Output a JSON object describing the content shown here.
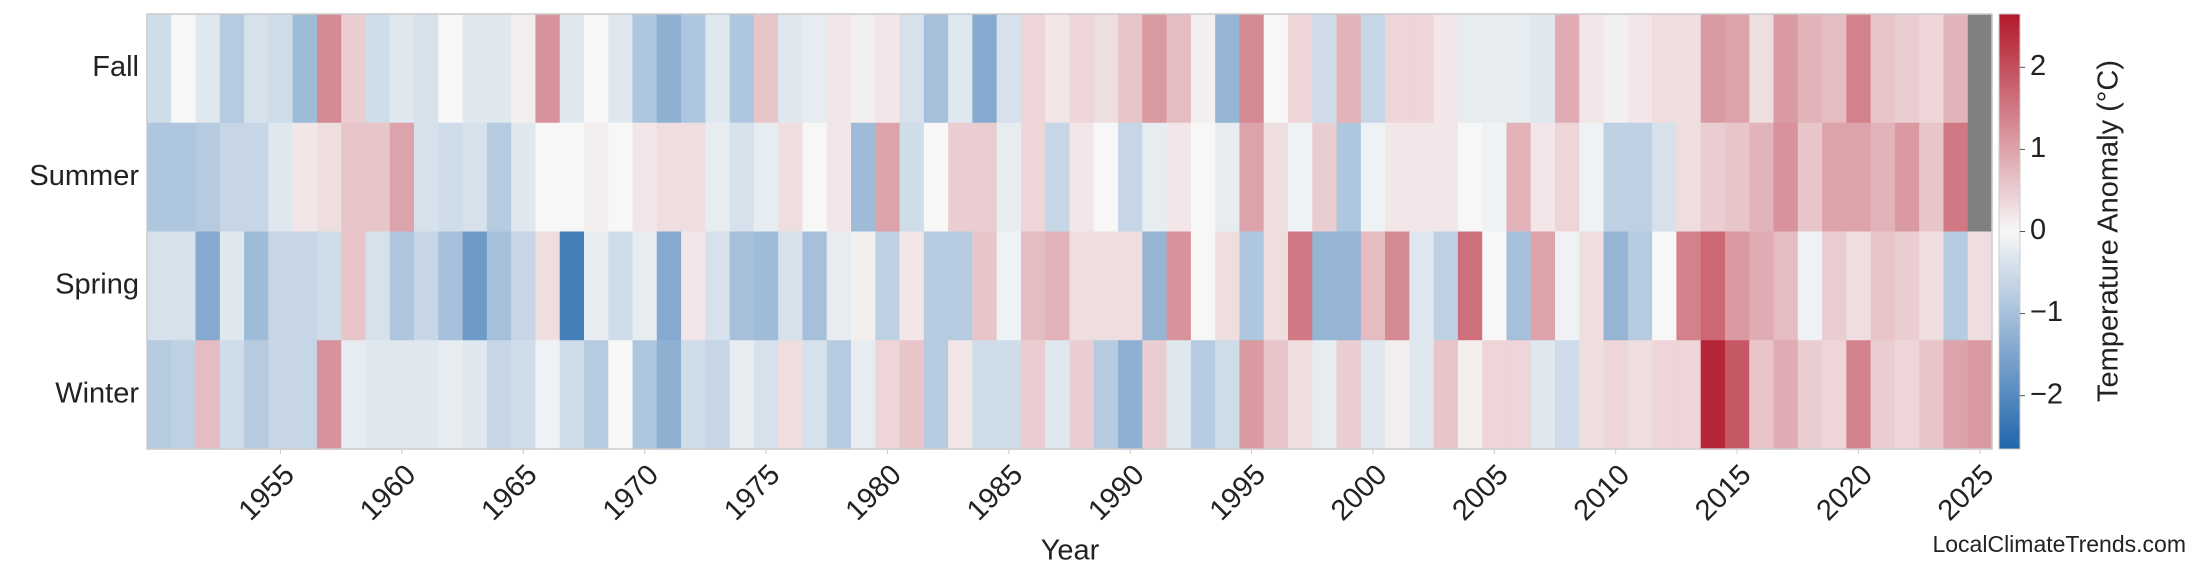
{
  "chart_data": {
    "type": "heatmap",
    "xlabel": "Year",
    "colorbar_label": "Temperature Anomaly (°C)",
    "watermark": "LocalClimateTrends.com",
    "x": [
      1950,
      1951,
      1952,
      1953,
      1954,
      1955,
      1956,
      1957,
      1958,
      1959,
      1960,
      1961,
      1962,
      1963,
      1964,
      1965,
      1966,
      1967,
      1968,
      1969,
      1970,
      1971,
      1972,
      1973,
      1974,
      1975,
      1976,
      1977,
      1978,
      1979,
      1980,
      1981,
      1982,
      1983,
      1984,
      1985,
      1986,
      1987,
      1988,
      1989,
      1990,
      1991,
      1992,
      1993,
      1994,
      1995,
      1996,
      1997,
      1998,
      1999,
      2000,
      2001,
      2002,
      2003,
      2004,
      2005,
      2006,
      2007,
      2008,
      2009,
      2010,
      2011,
      2012,
      2013,
      2014,
      2015,
      2016,
      2017,
      2018,
      2019,
      2020,
      2021,
      2022,
      2023,
      2024,
      2025
    ],
    "xlim": [
      1949.5,
      2025.5
    ],
    "xticks": [
      1955,
      1960,
      1965,
      1970,
      1975,
      1980,
      1985,
      1990,
      1995,
      2000,
      2005,
      2010,
      2015,
      2020,
      2025
    ],
    "series": [
      {
        "name": "Fall",
        "values": [
          -0.5,
          0,
          -0.3,
          -0.8,
          -0.4,
          -0.5,
          -1.1,
          1.3,
          0.5,
          -0.5,
          -0.3,
          -0.4,
          0,
          -0.3,
          -0.3,
          0.1,
          1.2,
          -0.3,
          0,
          -0.3,
          -0.9,
          -1.3,
          -0.9,
          -0.3,
          -0.9,
          0.6,
          -0.3,
          -0.2,
          0.2,
          0.1,
          0.2,
          -0.4,
          -1.0,
          -0.3,
          -1.4,
          -0.4,
          0.4,
          0.2,
          0.4,
          0.3,
          0.6,
          1.1,
          0.7,
          0.1,
          -1.2,
          1.3,
          0,
          0.4,
          -0.5,
          0.8,
          -0.6,
          0.4,
          0.4,
          0.2,
          -0.2,
          -0.2,
          -0.2,
          -0.3,
          0.9,
          0.2,
          0.1,
          0.2,
          0.3,
          0.3,
          1.1,
          1.0,
          0.3,
          1.1,
          0.8,
          0.7,
          1.4,
          0.6,
          0.5,
          0.4,
          0.8,
          null
        ]
      },
      {
        "name": "Summer",
        "values": [
          -0.9,
          -0.9,
          -0.8,
          -0.6,
          -0.6,
          -0.3,
          0.2,
          0.3,
          0.6,
          0.6,
          1.0,
          -0.4,
          -0.5,
          -0.4,
          -0.8,
          -0.3,
          0,
          0,
          0.1,
          0,
          0.2,
          0.3,
          0.3,
          -0.2,
          -0.4,
          -0.2,
          0.3,
          0,
          0.2,
          -1.1,
          1.0,
          -0.5,
          0,
          0.5,
          0.5,
          -0.2,
          0.4,
          -0.6,
          0.2,
          0,
          -0.6,
          -0.2,
          0.2,
          0,
          -0.2,
          1.0,
          0.3,
          -0.1,
          0.5,
          -0.9,
          -0.1,
          0.2,
          0.2,
          0.2,
          0,
          -0.1,
          0.8,
          0.2,
          0.4,
          -0.1,
          -0.7,
          -0.7,
          -0.4,
          0.3,
          0.5,
          0.6,
          0.8,
          1.2,
          0.6,
          1.0,
          1.0,
          0.8,
          1.1,
          0.6,
          1.5,
          null
        ]
      },
      {
        "name": "Spring",
        "values": [
          -0.4,
          -0.4,
          -1.4,
          -0.3,
          -1.1,
          -0.6,
          -0.6,
          -0.5,
          0.6,
          -0.4,
          -0.9,
          -0.6,
          -1.0,
          -1.7,
          -1.0,
          -0.6,
          0.3,
          -2.2,
          -0.2,
          -0.5,
          -0.2,
          -1.4,
          0.2,
          -0.4,
          -1.0,
          -1.1,
          -0.4,
          -1.0,
          -0.2,
          0.1,
          -0.7,
          0.2,
          -0.8,
          -0.8,
          0.6,
          -0.1,
          0.7,
          0.8,
          0.3,
          0.3,
          0.3,
          -1.2,
          1.2,
          0,
          0.3,
          -0.9,
          0.3,
          1.5,
          -1.2,
          -1.2,
          0.7,
          1.3,
          -0.3,
          -0.7,
          1.6,
          0,
          -1.0,
          1.0,
          -0.1,
          0.3,
          -1.2,
          -0.8,
          0,
          1.4,
          1.7,
          1.1,
          0.9,
          0.7,
          -0.1,
          0.5,
          0.3,
          0.6,
          0.5,
          0.3,
          -0.8,
          0.3
        ]
      },
      {
        "name": "Winter",
        "values": [
          -0.8,
          -0.7,
          0.7,
          -0.5,
          -0.8,
          -0.6,
          -0.6,
          1.2,
          -0.2,
          -0.3,
          -0.3,
          -0.3,
          -0.2,
          -0.3,
          -0.6,
          -0.5,
          -0.1,
          -0.5,
          -0.8,
          0,
          -0.9,
          -1.3,
          -0.5,
          -0.6,
          -0.2,
          -0.4,
          0.3,
          -0.4,
          -0.8,
          -0.2,
          0.4,
          0.6,
          -0.8,
          0.2,
          -0.5,
          -0.5,
          0.5,
          -0.3,
          0.5,
          -0.8,
          -1.3,
          0.5,
          -0.3,
          -0.8,
          -0.5,
          1.1,
          0.6,
          0.3,
          -0.2,
          0.5,
          -0.3,
          0.1,
          -0.3,
          0.6,
          0.1,
          0.4,
          0.4,
          -0.3,
          -0.5,
          0.3,
          0.4,
          0.3,
          0.4,
          0.4,
          2.5,
          1.9,
          0.6,
          0.9,
          0.5,
          0.4,
          1.4,
          0.5,
          0.4,
          0.6,
          1.0,
          1.1
        ]
      }
    ],
    "clim": [
      -2.65,
      2.65
    ],
    "cticks": [
      {
        "value": -2,
        "label": "−2"
      },
      {
        "value": -1,
        "label": "−1"
      },
      0,
      1,
      2
    ],
    "colorscale": [
      "#2166ac",
      "#f7f7f7",
      "#b2182b"
    ],
    "null_color": "#808080"
  }
}
